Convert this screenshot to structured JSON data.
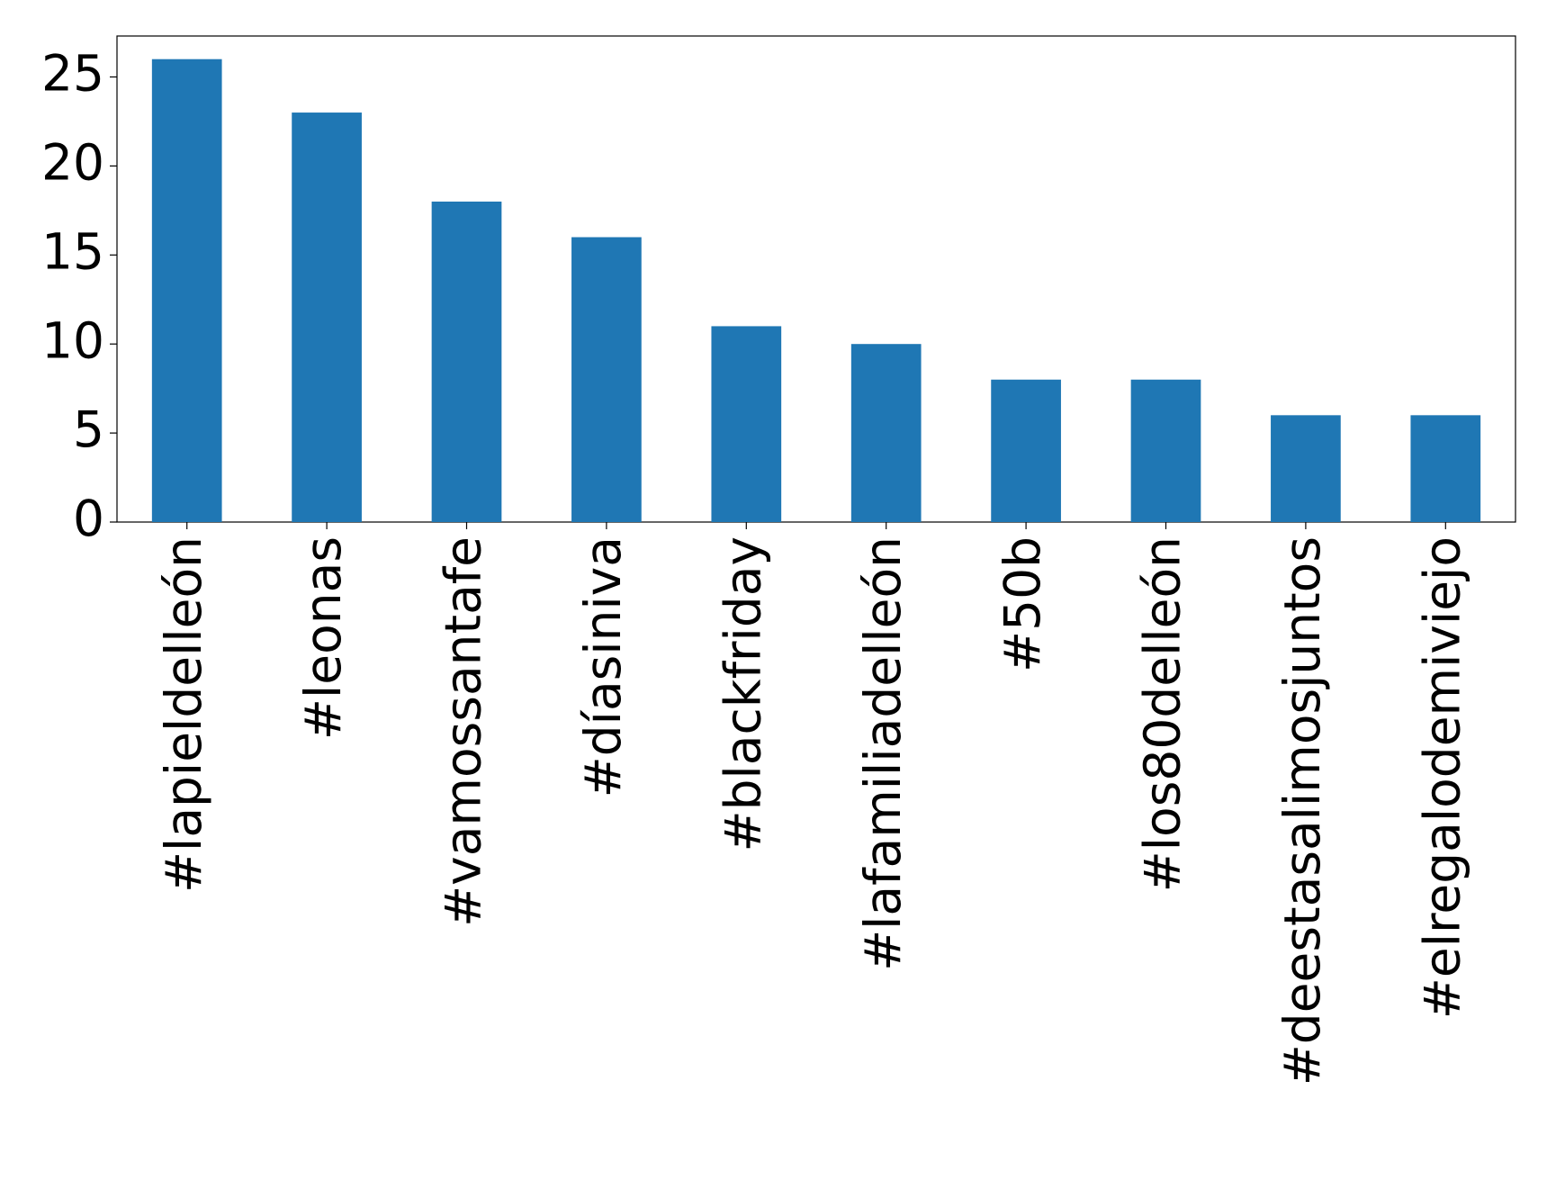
{
  "chart_data": {
    "type": "bar",
    "categories": [
      "#lapieldelleón",
      "#leonas",
      "#vamossantafe",
      "#díasiniva",
      "#blackfriday",
      "#lafamiliadelleón",
      "#50b",
      "#los80delleón",
      "#deestasalimosjuntos",
      "#elregalodemiviejo"
    ],
    "values": [
      26,
      23,
      18,
      16,
      11,
      10,
      8,
      8,
      6,
      6
    ],
    "color": "#1f77b4",
    "ylim": [
      0,
      27.3
    ],
    "yticks": [
      0,
      5,
      10,
      15,
      20,
      25
    ],
    "grid": false
  }
}
